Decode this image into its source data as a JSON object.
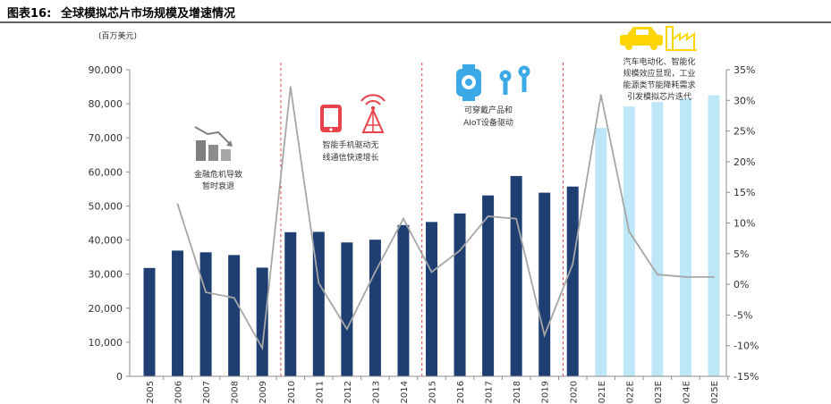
{
  "header": {
    "figure_label": "图表16:",
    "title": "全球模拟芯片市场规模及增速情况"
  },
  "chart_data": {
    "type": "bar",
    "unit_label": "(百万美元)",
    "categories": [
      "2005",
      "2006",
      "2007",
      "2008",
      "2009",
      "2010",
      "2011",
      "2012",
      "2013",
      "2014",
      "2015",
      "2016",
      "2017",
      "2018",
      "2019",
      "2020",
      "2021E",
      "2022E",
      "2023E",
      "2024E",
      "2025E"
    ],
    "series": [
      {
        "kind": "bar",
        "axis": "left",
        "values": [
          31800,
          36900,
          36400,
          35600,
          31900,
          42300,
          42400,
          39300,
          40100,
          44400,
          45300,
          47800,
          53100,
          58800,
          53900,
          55700,
          72900,
          79200,
          80500,
          81500,
          82500
        ],
        "forecast_from_index": 16
      },
      {
        "kind": "line",
        "axis": "right",
        "values": [
          null,
          13.1,
          -1.3,
          -2.2,
          -10.4,
          32.2,
          0.2,
          -7.3,
          2.0,
          10.7,
          2.0,
          5.5,
          11.1,
          10.7,
          -8.3,
          3.3,
          30.9,
          8.6,
          1.6,
          1.2,
          1.2
        ]
      }
    ],
    "y_left": {
      "min": 0,
      "max": 90000,
      "step": 10000,
      "tick_labels": [
        "0",
        "10,000",
        "20,000",
        "30,000",
        "40,000",
        "50,000",
        "60,000",
        "70,000",
        "80,000",
        "90,000"
      ]
    },
    "y_right": {
      "min": -15,
      "max": 35,
      "step": 5,
      "tick_labels": [
        "-15%",
        "-10%",
        "-5%",
        "0%",
        "5%",
        "10%",
        "15%",
        "20%",
        "25%",
        "30%",
        "35%"
      ]
    },
    "period_dividers_after": [
      "2009",
      "2014",
      "2019"
    ],
    "annotations": [
      {
        "id": "crisis",
        "lines": [
          "金融危机导致",
          "暂时衰退"
        ],
        "icon": "declining-bars-icon"
      },
      {
        "id": "mobile",
        "lines": [
          "智能手机驱动无",
          "线通信快速增长"
        ],
        "icon": "smartphone-icon",
        "icon2": "signal-tower-icon"
      },
      {
        "id": "wearable",
        "lines": [
          "可穿戴产品和",
          "AIoT设备驱动"
        ],
        "icon": "smartwatch-icon",
        "icon2": "keys-icon"
      },
      {
        "id": "auto",
        "lines": [
          "汽车电动化、智能化",
          "规模效应显现，工业",
          "能源类节能降耗需求",
          "引发模拟芯片迭代"
        ],
        "icon": "car-icon",
        "icon2": "factory-icon"
      }
    ],
    "colors": {
      "bar_actual": "#1F3F73",
      "bar_forecast": "#BDE6F7",
      "line": "#A6A6A6",
      "divider": "#E8434B",
      "accent_red": "#E8434B",
      "accent_blue": "#3BA9E6",
      "accent_yellow": "#FFD500",
      "accent_gray": "#7F7F7F"
    }
  }
}
